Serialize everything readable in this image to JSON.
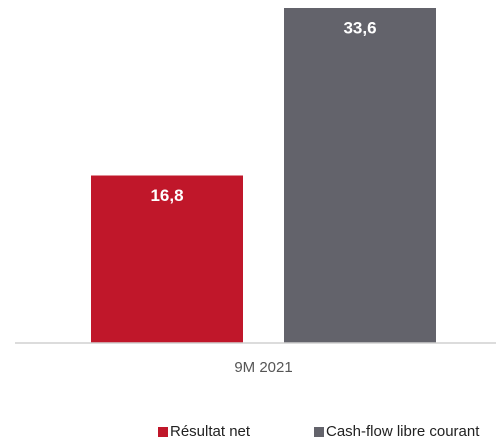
{
  "chart_data": {
    "type": "bar",
    "categories": [
      "9M 2021"
    ],
    "series": [
      {
        "name": "Résultat net",
        "color": "#c0172a",
        "values": [
          16.8
        ],
        "value_labels": [
          "16,8"
        ]
      },
      {
        "name": "Cash-flow libre courant",
        "color": "#63636b",
        "values": [
          33.6
        ],
        "value_labels": [
          "33,6"
        ]
      }
    ]
  }
}
